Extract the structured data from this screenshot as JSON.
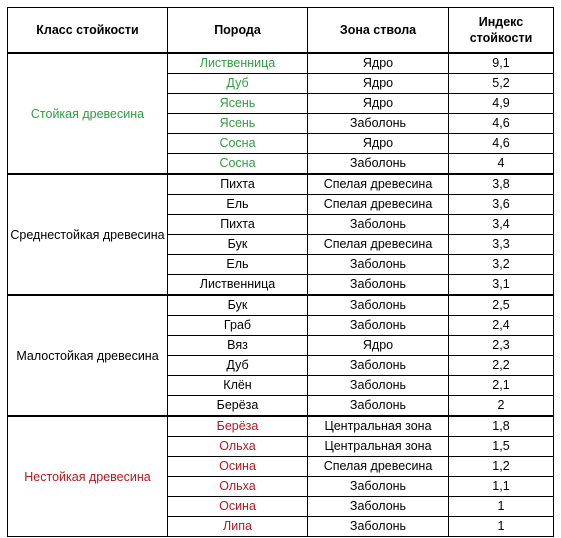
{
  "colors": {
    "durable": "#2e9e3e",
    "nondurable": "#c0141b",
    "default": "#000000"
  },
  "headers": {
    "class": "Класс стойкости",
    "species": "Порода",
    "zone": "Зона ствола",
    "index": "Индекс стойкости"
  },
  "groups": [
    {
      "class": "Стойкая древесина",
      "color": "#2e9e3e",
      "rows": [
        {
          "species": "Лиственница",
          "zone": "Ядро",
          "index": "9,1"
        },
        {
          "species": "Дуб",
          "zone": "Ядро",
          "index": "5,2"
        },
        {
          "species": "Ясень",
          "zone": "Ядро",
          "index": "4,9"
        },
        {
          "species": "Ясень",
          "zone": "Заболонь",
          "index": "4,6"
        },
        {
          "species": "Сосна",
          "zone": "Ядро",
          "index": "4,6"
        },
        {
          "species": "Сосна",
          "zone": "Заболонь",
          "index": "4"
        }
      ]
    },
    {
      "class": "Среднестойкая древесина",
      "color": "#000000",
      "rows": [
        {
          "species": "Пихта",
          "zone": "Спелая древесина",
          "index": "3,8"
        },
        {
          "species": "Ель",
          "zone": "Спелая древесина",
          "index": "3,6"
        },
        {
          "species": "Пихта",
          "zone": "Заболонь",
          "index": "3,4"
        },
        {
          "species": "Бук",
          "zone": "Спелая древесина",
          "index": "3,3"
        },
        {
          "species": "Ель",
          "zone": "Заболонь",
          "index": "3,2"
        },
        {
          "species": "Лиственница",
          "zone": "Заболонь",
          "index": "3,1"
        }
      ]
    },
    {
      "class": "Малостойкая древесина",
      "color": "#000000",
      "rows": [
        {
          "species": "Бук",
          "zone": "Заболонь",
          "index": "2,5"
        },
        {
          "species": "Граб",
          "zone": "Заболонь",
          "index": "2,4"
        },
        {
          "species": "Вяз",
          "zone": "Ядро",
          "index": "2,3"
        },
        {
          "species": "Дуб",
          "zone": "Заболонь",
          "index": "2,2"
        },
        {
          "species": "Клён",
          "zone": "Заболонь",
          "index": "2,1"
        },
        {
          "species": "Берёза",
          "zone": "Заболонь",
          "index": "2"
        }
      ]
    },
    {
      "class": "Нестойкая древесина",
      "color": "#c0141b",
      "rows": [
        {
          "species": "Берёза",
          "zone": "Центральная зона",
          "index": "1,8"
        },
        {
          "species": "Ольха",
          "zone": "Центральная зона",
          "index": "1,5"
        },
        {
          "species": "Осина",
          "zone": "Спелая древесина",
          "index": "1,2"
        },
        {
          "species": "Ольха",
          "zone": "Заболонь",
          "index": "1,1"
        },
        {
          "species": "Осина",
          "zone": "Заболонь",
          "index": "1"
        },
        {
          "species": "Липа",
          "zone": "Заболонь",
          "index": "1"
        }
      ]
    }
  ]
}
